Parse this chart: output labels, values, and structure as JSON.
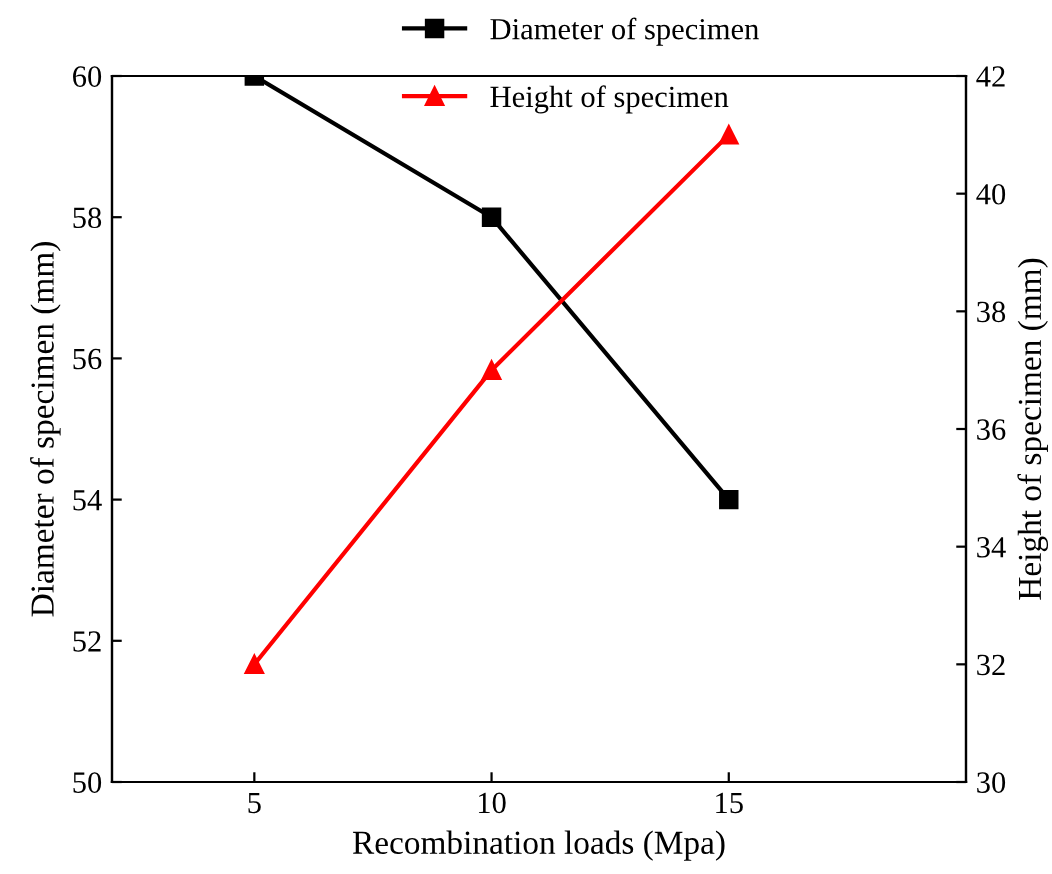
{
  "chart_data": {
    "type": "line",
    "xlabel": "Recombination loads (Mpa)",
    "ylabel": "Diameter of specimen (mm)",
    "y2label": "Height of specimen (mm)",
    "x": [
      5,
      10,
      15
    ],
    "xlim": [
      2,
      20
    ],
    "xticks": [
      5,
      10,
      15
    ],
    "ylim": [
      50,
      60
    ],
    "yticks": [
      50,
      52,
      54,
      56,
      58,
      60
    ],
    "y2lim": [
      30,
      42
    ],
    "y2ticks": [
      30,
      32,
      34,
      36,
      38,
      40,
      42
    ],
    "series": [
      {
        "name": "Diameter of specimen",
        "color": "#000000",
        "values": [
          60,
          58,
          54
        ],
        "marker": "square"
      },
      {
        "name": "Height of specimen",
        "color": "#ff0000",
        "values": [
          32,
          37,
          41
        ],
        "marker": "triangle",
        "axis": "y2"
      }
    ],
    "legend": "top",
    "grid": false
  }
}
